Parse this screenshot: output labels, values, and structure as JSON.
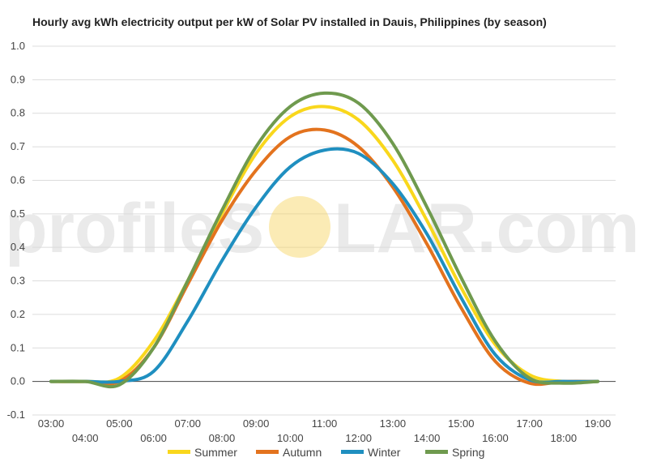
{
  "chart_data": {
    "type": "line",
    "title": "Hourly avg kWh electricity output per kW of Solar PV installed in Dauis, Philippines (by season)",
    "xlabel": "",
    "ylabel": "",
    "x": [
      "03:00",
      "04:00",
      "05:00",
      "06:00",
      "07:00",
      "08:00",
      "09:00",
      "10:00",
      "11:00",
      "12:00",
      "13:00",
      "14:00",
      "15:00",
      "16:00",
      "17:00",
      "18:00",
      "19:00"
    ],
    "ylim": [
      -0.1,
      1.0
    ],
    "yticks": [
      "-0.1",
      "0.0",
      "0.1",
      "0.2",
      "0.3",
      "0.4",
      "0.5",
      "0.6",
      "0.7",
      "0.8",
      "0.9",
      "1.0"
    ],
    "grid": true,
    "legend_position": "bottom",
    "series": [
      {
        "name": "Summer",
        "color": "#f9d71c",
        "values": [
          0,
          0,
          0.01,
          0.12,
          0.3,
          0.5,
          0.68,
          0.79,
          0.82,
          0.78,
          0.66,
          0.48,
          0.28,
          0.11,
          0.02,
          0,
          0
        ]
      },
      {
        "name": "Autumn",
        "color": "#e3731e",
        "values": [
          0,
          0,
          0.0,
          0.1,
          0.29,
          0.48,
          0.63,
          0.73,
          0.75,
          0.7,
          0.58,
          0.41,
          0.22,
          0.06,
          -0.005,
          0,
          0
        ]
      },
      {
        "name": "Winter",
        "color": "#1f8fc0",
        "values": [
          0,
          0,
          0.0,
          0.03,
          0.18,
          0.36,
          0.52,
          0.64,
          0.69,
          0.68,
          0.59,
          0.44,
          0.25,
          0.08,
          0.005,
          0,
          0
        ]
      },
      {
        "name": "Spring",
        "color": "#6f9a4e",
        "values": [
          0,
          0,
          -0.01,
          0.1,
          0.3,
          0.51,
          0.7,
          0.82,
          0.86,
          0.83,
          0.71,
          0.52,
          0.31,
          0.12,
          0.01,
          -0.005,
          0
        ]
      }
    ]
  },
  "watermark": {
    "text_left": "profile",
    "text_right": "LAR.com",
    "sun_color": "#f7d35a"
  }
}
